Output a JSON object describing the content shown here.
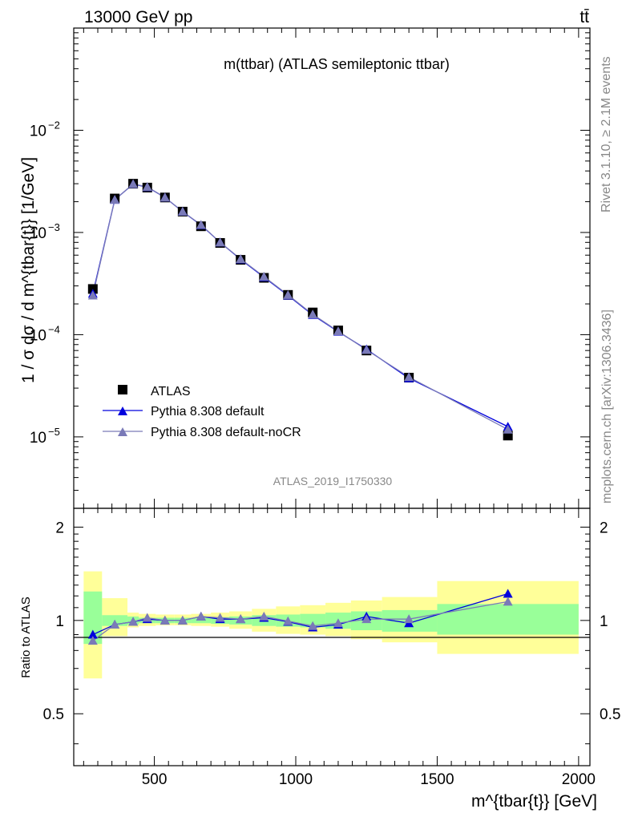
{
  "header": {
    "energy_label": "13000 GeV pp",
    "process_label": "tt̄"
  },
  "side_text": {
    "rivet": "Rivet 3.1.10, ≥ 2.1M events",
    "mcplots": "mcplots.cern.ch [arXiv:1306.3436]"
  },
  "chart_data": [
    {
      "type": "scatter",
      "title": "m(ttbar) (ATLAS semileptonic ttbar)",
      "ylabel": "1 / σ dσ / d m^{tbar{t}} [1/GeV]",
      "xlabel": "",
      "xlim": [
        215,
        2040
      ],
      "ylim": [
        2e-06,
        0.1
      ],
      "yscale": "log",
      "y_tick_labels": [
        "10^-5",
        "10^-4",
        "10^-3",
        "10^-2"
      ],
      "watermark": "ATLAS_2019_I1750330",
      "legend_position": "bottom-left",
      "x": [
        282.5,
        360,
        425,
        475,
        537.5,
        600,
        665,
        732.5,
        805,
        887.5,
        972.5,
        1060,
        1150,
        1250,
        1400,
        1750
      ],
      "series": [
        {
          "name": "ATLAS",
          "color": "#000000",
          "marker": "square",
          "values": [
            0.00028,
            0.00215,
            0.003,
            0.00275,
            0.0022,
            0.0016,
            0.00115,
            0.00079,
            0.00054,
            0.00036,
            0.000245,
            0.000165,
            0.00011,
            7e-05,
            3.8e-05,
            1.03e-05
          ]
        },
        {
          "name": "Pythia 8.308 default",
          "color": "#0000dd",
          "marker": "triangle",
          "values": [
            0.000252,
            0.00209,
            0.00297,
            0.00278,
            0.0022,
            0.0016,
            0.00118,
            0.0008,
            0.000545,
            0.000365,
            0.000242,
            0.000156,
            0.000107,
            7.2e-05,
            3.75e-05,
            1.26e-05
          ]
        },
        {
          "name": "Pythia 8.308 default-noCR",
          "color": "#7a7ab8",
          "marker": "triangle",
          "values": [
            0.000242,
            0.00209,
            0.00298,
            0.0028,
            0.0022,
            0.0016,
            0.00119,
            0.0008,
            0.00055,
            0.00037,
            0.000245,
            0.000158,
            0.000108,
            7.1e-05,
            3.85e-05,
            1.18e-05
          ]
        }
      ]
    },
    {
      "type": "line",
      "ylabel": "Ratio to ATLAS",
      "xlabel": "m^{tbar{t}} [GeV]",
      "xlim": [
        215,
        2040
      ],
      "ylim": [
        0.34,
        2.3
      ],
      "x_ticks": [
        500,
        1000,
        1500,
        2000
      ],
      "y_ticks": [
        0.5,
        1,
        2
      ],
      "x": [
        282.5,
        360,
        425,
        475,
        537.5,
        600,
        665,
        732.5,
        805,
        887.5,
        972.5,
        1060,
        1150,
        1250,
        1400,
        1750
      ],
      "bin_edges": [
        250,
        315,
        405,
        445,
        505,
        570,
        630,
        700,
        765,
        845,
        930,
        1015,
        1105,
        1195,
        1305,
        1500,
        2000
      ],
      "band_inner": {
        "color": "#99ff99",
        "lower": [
          0.84,
          0.96,
          0.97,
          0.98,
          0.98,
          0.98,
          0.98,
          0.975,
          0.97,
          0.96,
          0.955,
          0.95,
          0.94,
          0.93,
          0.92,
          0.9
        ],
        "upper": [
          1.24,
          1.04,
          1.03,
          1.02,
          1.02,
          1.02,
          1.02,
          1.025,
          1.03,
          1.04,
          1.045,
          1.05,
          1.06,
          1.07,
          1.08,
          1.13
        ]
      },
      "band_outer": {
        "color": "#ffff99",
        "lower": [
          0.65,
          0.89,
          0.95,
          0.96,
          0.965,
          0.965,
          0.96,
          0.955,
          0.94,
          0.92,
          0.905,
          0.9,
          0.89,
          0.87,
          0.85,
          0.78
        ],
        "upper": [
          1.44,
          1.18,
          1.06,
          1.05,
          1.045,
          1.045,
          1.05,
          1.06,
          1.07,
          1.09,
          1.11,
          1.12,
          1.14,
          1.16,
          1.19,
          1.34
        ]
      },
      "series": [
        {
          "name": "Pythia 8.308 default",
          "color": "#0000dd",
          "values": [
            0.9,
            0.97,
            0.99,
            1.01,
            1.0,
            1.0,
            1.03,
            1.01,
            1.01,
            1.02,
            0.99,
            0.95,
            0.97,
            1.03,
            0.98,
            1.22
          ]
        },
        {
          "name": "Pythia 8.308 default-noCR",
          "color": "#7a7ab8",
          "values": [
            0.86,
            0.97,
            0.99,
            1.02,
            1.0,
            1.0,
            1.03,
            1.02,
            1.01,
            1.03,
            0.995,
            0.96,
            0.98,
            1.01,
            1.01,
            1.15
          ]
        }
      ]
    }
  ]
}
